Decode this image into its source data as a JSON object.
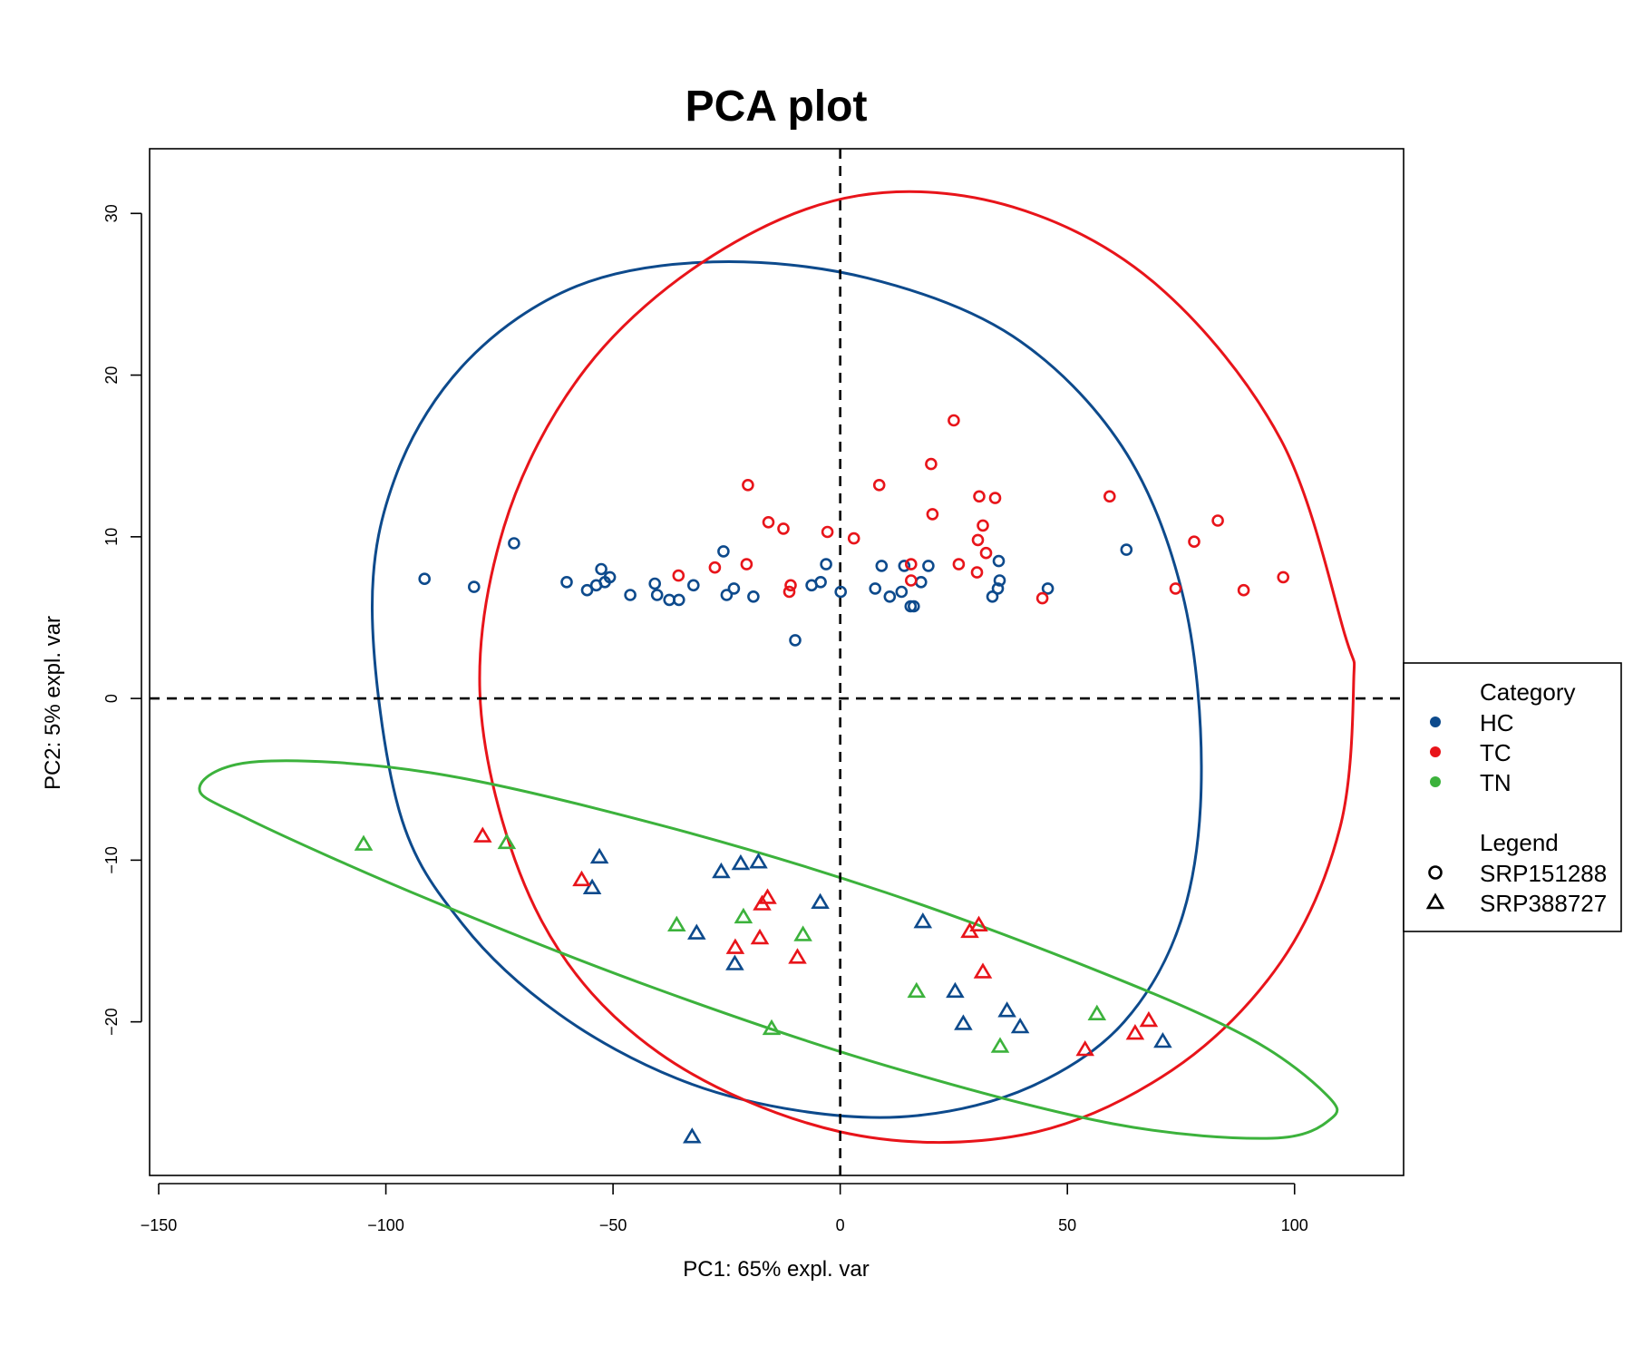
{
  "colors": {
    "HC": "#0d4a8c",
    "TC": "#e8141a",
    "TN": "#3cb23c",
    "axis": "#000000",
    "background": "#ffffff"
  },
  "chart_data": {
    "type": "scatter",
    "title": "PCA plot",
    "xlabel": "PC1: 65% expl. var",
    "ylabel": "PC2: 5% expl. var",
    "xlim": [
      -152,
      124
    ],
    "ylim": [
      -29.5,
      34
    ],
    "xticks": [
      -150,
      -100,
      -50,
      0,
      50,
      100
    ],
    "xtick_labels": [
      "−150",
      "−100",
      "−50",
      "0",
      "50",
      "100"
    ],
    "yticks": [
      -20,
      -10,
      0,
      10,
      20,
      30
    ],
    "ytick_labels": [
      "−20",
      "−10",
      "0",
      "10",
      "20",
      "30"
    ],
    "reference_lines": {
      "x": 0,
      "y": 0,
      "style": "dashed"
    },
    "legend": {
      "placement": "right",
      "category_title": "Category",
      "categories": [
        "HC",
        "TC",
        "TN"
      ],
      "shape_title": "Legend",
      "shapes": [
        {
          "name": "SRP151288",
          "marker": "circle"
        },
        {
          "name": "SRP388727",
          "marker": "triangle"
        }
      ]
    },
    "ellipses": [
      {
        "category": "HC",
        "points": [
          [
            -103,
            5.5
          ],
          [
            -97.5,
            14
          ],
          [
            -82,
            20.9
          ],
          [
            -58,
            25.5
          ],
          [
            -28,
            27
          ],
          [
            6,
            26
          ],
          [
            38,
            22.4
          ],
          [
            62,
            15.6
          ],
          [
            75.3,
            6.5
          ],
          [
            79.5,
            -4.2
          ],
          [
            75.5,
            -13.3
          ],
          [
            62.5,
            -20
          ],
          [
            42,
            -24
          ],
          [
            17,
            -25.8
          ],
          [
            -9,
            -25.5
          ],
          [
            -36,
            -23.5
          ],
          [
            -62,
            -19.5
          ],
          [
            -83,
            -14
          ],
          [
            -97,
            -7
          ],
          [
            -103,
            5.5
          ]
        ]
      },
      {
        "category": "TC",
        "points": [
          [
            -79,
            -1
          ],
          [
            -74,
            10.6
          ],
          [
            -56,
            20.4
          ],
          [
            -28,
            27.4
          ],
          [
            4,
            31.1
          ],
          [
            38,
            30.4
          ],
          [
            70,
            25.5
          ],
          [
            97,
            16
          ],
          [
            111,
            4
          ],
          [
            113,
            1
          ],
          [
            110,
            -8
          ],
          [
            97,
            -16.3
          ],
          [
            73,
            -23
          ],
          [
            40,
            -27
          ],
          [
            0,
            -26.8
          ],
          [
            -40,
            -21.9
          ],
          [
            -66,
            -13.6
          ],
          [
            -79,
            -1
          ]
        ]
      },
      {
        "category": "TN",
        "points": [
          [
            -141,
            -5.5
          ],
          [
            -128,
            -3.9
          ],
          [
            -90,
            -4.6
          ],
          [
            -40,
            -7.8
          ],
          [
            10,
            -12
          ],
          [
            58,
            -17
          ],
          [
            90,
            -21
          ],
          [
            107,
            -24.5
          ],
          [
            108,
            -26
          ],
          [
            95,
            -27.2
          ],
          [
            60,
            -26.3
          ],
          [
            10,
            -22.7
          ],
          [
            -40,
            -18
          ],
          [
            -90,
            -12.5
          ],
          [
            -130,
            -7.5
          ],
          [
            -141,
            -5.5
          ]
        ]
      }
    ],
    "series": [
      {
        "name": "HC",
        "source": "SRP151288",
        "marker": "circle",
        "x": [
          -91.5,
          -80.6,
          -71.8,
          -60.2,
          -55.7,
          -53.7,
          -52.6,
          -51.8,
          -50.7,
          -46.2,
          -40.8,
          -40.3,
          -37.6,
          -35.5,
          -32.3,
          -25.7,
          -25,
          -23.4,
          -19.1,
          -6.3,
          -4.3,
          -3.1,
          0.1,
          7.7,
          9.1,
          10.9,
          13.5,
          14.1,
          15.5,
          16.2,
          17.8,
          19.4,
          33.5,
          34.9,
          35.1,
          34.7,
          45.7,
          63,
          -9.9
        ],
        "y": [
          7.4,
          6.9,
          9.6,
          7.2,
          6.7,
          7.0,
          8.0,
          7.2,
          7.5,
          6.4,
          7.1,
          6.4,
          6.1,
          6.1,
          7.0,
          9.1,
          6.4,
          6.8,
          6.3,
          7.0,
          7.2,
          8.3,
          6.6,
          6.8,
          8.2,
          6.3,
          6.6,
          8.2,
          5.7,
          5.7,
          7.2,
          8.2,
          6.3,
          8.5,
          7.3,
          6.8,
          6.8,
          9.2,
          3.6
        ]
      },
      {
        "name": "TC",
        "source": "SRP151288",
        "marker": "circle",
        "x": [
          -20.3,
          -15.8,
          -12.5,
          -10.9,
          -11.2,
          -2.8,
          3,
          8.6,
          15.6,
          15.6,
          20,
          20.3,
          25,
          26.1,
          30.1,
          30.3,
          30.6,
          31.4,
          32.1,
          34.1,
          44.5,
          59.3,
          73.8,
          77.9,
          83.1,
          88.8,
          97.5,
          -35.6,
          -27.6,
          -20.6
        ],
        "y": [
          13.2,
          10.9,
          10.5,
          7.0,
          6.6,
          10.3,
          9.9,
          13.2,
          8.3,
          7.3,
          14.5,
          11.4,
          17.2,
          8.3,
          7.8,
          9.8,
          12.5,
          10.7,
          9.0,
          12.4,
          6.2,
          12.5,
          6.8,
          9.7,
          11.0,
          6.7,
          7.5,
          7.6,
          8.1,
          8.3
        ]
      },
      {
        "name": "HC",
        "source": "SRP388727",
        "marker": "triangle",
        "x": [
          -53,
          -54.6,
          -32.6,
          -31.6,
          -26.2,
          -23.2,
          -21.9,
          -18,
          -4.4,
          18.2,
          25.3,
          27.1,
          36.7,
          39.6,
          71
        ],
        "y": [
          -9.8,
          -11.7,
          -27.1,
          -14.5,
          -10.7,
          -16.4,
          -10.2,
          -10.1,
          -12.6,
          -13.8,
          -18.1,
          -20.1,
          -19.3,
          -20.3,
          -21.2
        ]
      },
      {
        "name": "TC",
        "source": "SRP388727",
        "marker": "triangle",
        "x": [
          -78.7,
          -56.9,
          -23.1,
          -17.7,
          -17.2,
          -16,
          -9.4,
          28.5,
          30.5,
          31.4,
          53.9,
          64.9,
          67.9
        ],
        "y": [
          -8.5,
          -11.2,
          -15.4,
          -14.8,
          -12.7,
          -12.3,
          -16,
          -14.4,
          -14,
          -16.9,
          -21.7,
          -20.7,
          -19.9
        ]
      },
      {
        "name": "TN",
        "source": "SRP388727",
        "marker": "triangle",
        "x": [
          -104.9,
          -73.4,
          -36,
          -21.3,
          -15.1,
          -8.2,
          16.8,
          35.2,
          56.5
        ],
        "y": [
          -9,
          -8.9,
          -14,
          -13.5,
          -20.4,
          -14.6,
          -18.1,
          -21.5,
          -19.5
        ]
      }
    ]
  }
}
